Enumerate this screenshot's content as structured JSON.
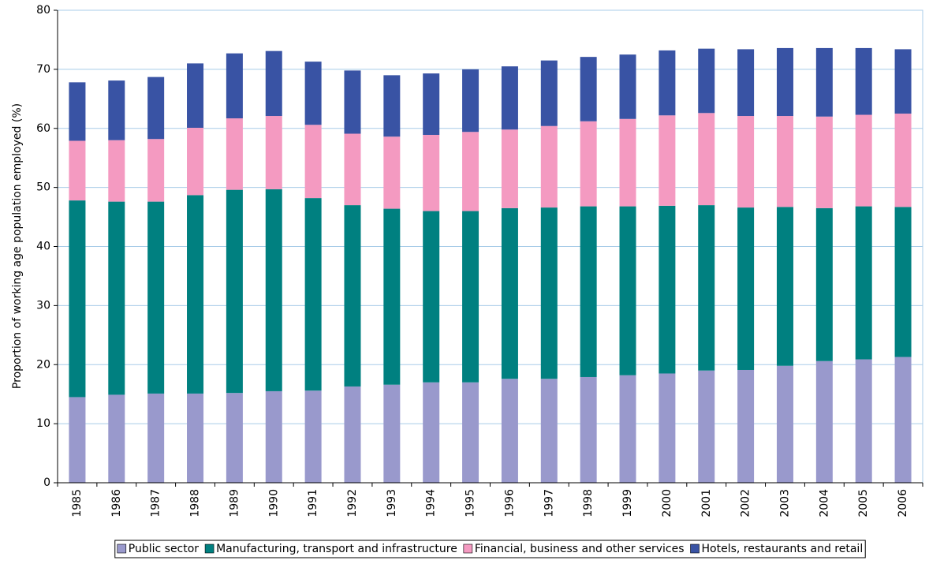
{
  "chart_data": {
    "type": "stacked_bar",
    "y_label": "Proportion of working age population employed (%)",
    "categories": [
      "1985",
      "1986",
      "1987",
      "1988",
      "1989",
      "1990",
      "1991",
      "1992",
      "1993",
      "1994",
      "1995",
      "1996",
      "1997",
      "1998",
      "1999",
      "2000",
      "2001",
      "2002",
      "2003",
      "2004",
      "2005",
      "2006"
    ],
    "series": [
      {
        "name": "Public sector",
        "color": "#9999cc",
        "values": [
          14.5,
          14.9,
          15.1,
          15.1,
          15.2,
          15.5,
          15.6,
          16.3,
          16.6,
          17.0,
          17.0,
          17.6,
          17.6,
          17.9,
          18.2,
          18.5,
          19.0,
          19.1,
          19.8,
          20.6,
          20.9,
          21.3
        ]
      },
      {
        "name": "Manufacturing, transport and infrastructure",
        "color": "#008080",
        "values": [
          33.3,
          32.7,
          32.5,
          33.6,
          34.4,
          34.2,
          32.6,
          30.7,
          29.8,
          29.0,
          29.0,
          28.9,
          29.0,
          28.9,
          28.6,
          28.4,
          28.0,
          27.5,
          26.9,
          25.9,
          25.9,
          25.4
        ]
      },
      {
        "name": "Financial, business and other services",
        "color": "#f49ac1",
        "values": [
          10.1,
          10.4,
          10.6,
          11.4,
          12.1,
          12.4,
          12.4,
          12.1,
          12.2,
          12.9,
          13.4,
          13.3,
          13.8,
          14.4,
          14.8,
          15.3,
          15.6,
          15.5,
          15.4,
          15.5,
          15.5,
          15.8
        ]
      },
      {
        "name": "Hotels, restaurants and retail",
        "color": "#3953a4",
        "values": [
          9.9,
          10.1,
          10.5,
          10.9,
          11.0,
          11.0,
          10.7,
          10.7,
          10.4,
          10.4,
          10.6,
          10.7,
          11.1,
          10.9,
          10.9,
          11.0,
          10.9,
          11.3,
          11.5,
          11.6,
          11.3,
          10.9
        ]
      }
    ],
    "ylim": [
      0,
      80
    ],
    "yticks": [
      0,
      10,
      20,
      30,
      40,
      50,
      60,
      70,
      80
    ],
    "grid": true,
    "legend": "bottom"
  }
}
